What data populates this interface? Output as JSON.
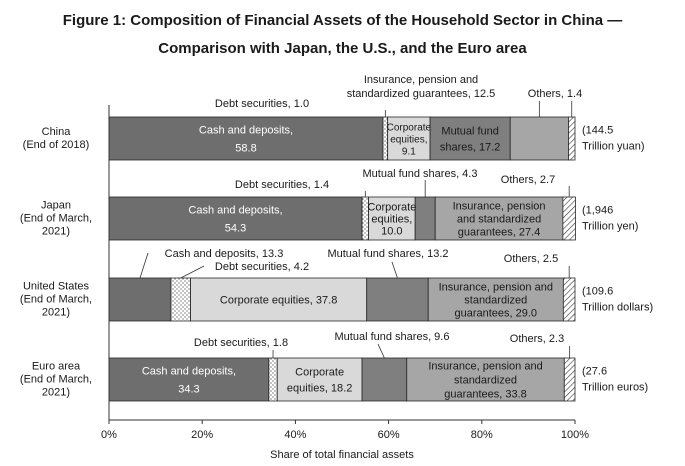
{
  "title_line1": "Figure 1: Composition of Financial Assets of the Household Sector in China —",
  "title_line2": "Comparison with Japan, the U.S., and the Euro area",
  "colors": {
    "cash": "#6e6e6e",
    "debt": "#ffffff",
    "equity": "#d9d9d9",
    "fund": "#7f7f7f",
    "insurance": "#a6a6a6",
    "others": "#ffffff"
  },
  "chart_data": {
    "type": "bar",
    "orientation": "horizontal",
    "stacked": true,
    "xlabel": "Share of total financial assets",
    "x_ticks": [
      "0%",
      "20%",
      "40%",
      "60%",
      "80%",
      "100%"
    ],
    "xlim": [
      0,
      100
    ],
    "categories": [
      {
        "name": "China",
        "sub": "(End of 2018)",
        "total": "(144.5",
        "unit": "Trillion yuan)"
      },
      {
        "name": "Japan",
        "sub": "(End of March,",
        "sub2": "2021)",
        "total": "(1,946",
        "unit": "Trillion yen)"
      },
      {
        "name": "United States",
        "sub": "(End of March,",
        "sub2": "2021)",
        "total": "(109.6",
        "unit": "Trillion dollars)"
      },
      {
        "name": "Euro area",
        "sub": "(End of March,",
        "sub2": "2021)",
        "total": "(27.6",
        "unit": "Trillion euros)"
      }
    ],
    "series": [
      {
        "name": "Cash and deposits",
        "key": "cash",
        "values": [
          58.8,
          54.3,
          13.3,
          34.3
        ]
      },
      {
        "name": "Debt securities",
        "key": "debt",
        "values": [
          1.0,
          1.4,
          4.2,
          1.8
        ]
      },
      {
        "name": "Corporate equities",
        "key": "equity",
        "values": [
          9.1,
          10.0,
          37.8,
          18.2
        ]
      },
      {
        "name": "Mutual fund shares",
        "key": "fund",
        "values": [
          17.2,
          4.3,
          13.2,
          9.6
        ]
      },
      {
        "name": "Insurance, pension and standardized guarantees",
        "key": "insurance",
        "values": [
          12.5,
          27.4,
          29.0,
          33.8
        ]
      },
      {
        "name": "Others",
        "key": "others",
        "values": [
          1.4,
          2.7,
          2.5,
          2.3
        ]
      }
    ],
    "labels": {
      "china": {
        "cash": [
          "Cash and deposits,",
          "58.8"
        ],
        "debt": "Debt securities, 1.0",
        "equity": [
          "Corporate",
          "equities,",
          "9.1"
        ],
        "fund": [
          "Mutual fund",
          "shares, 17.2"
        ],
        "insurance": [
          "Insurance, pension and",
          "standardized guarantees, 12.5"
        ],
        "others": "Others, 1.4"
      },
      "japan": {
        "cash": [
          "Cash and deposits,",
          "54.3"
        ],
        "debt": "Debt securities, 1.4",
        "equity": [
          "Corporate",
          "equities,",
          "10.0"
        ],
        "fund": "Mutual fund shares, 4.3",
        "insurance": [
          "Insurance, pension",
          "and standardized",
          "guarantees, 27.4"
        ],
        "others": "Others, 2.7"
      },
      "us": {
        "cash": "Cash and deposits, 13.3",
        "debt": "Debt securities, 4.2",
        "equity": "Corporate equities, 37.8",
        "fund": "Mutual fund shares, 13.2",
        "insurance": [
          "Insurance, pension and",
          "standardized",
          "guarantees, 29.0"
        ],
        "others": "Others, 2.5"
      },
      "euro": {
        "cash": [
          "Cash and deposits,",
          "34.3"
        ],
        "debt": "Debt securities, 1.8",
        "equity": [
          "Corporate",
          "equities, 18.2"
        ],
        "fund": "Mutual fund shares, 9.6",
        "insurance": [
          "Insurance, pension and",
          "standardized",
          "guarantees, 33.8"
        ],
        "others": "Others, 2.3"
      }
    }
  }
}
